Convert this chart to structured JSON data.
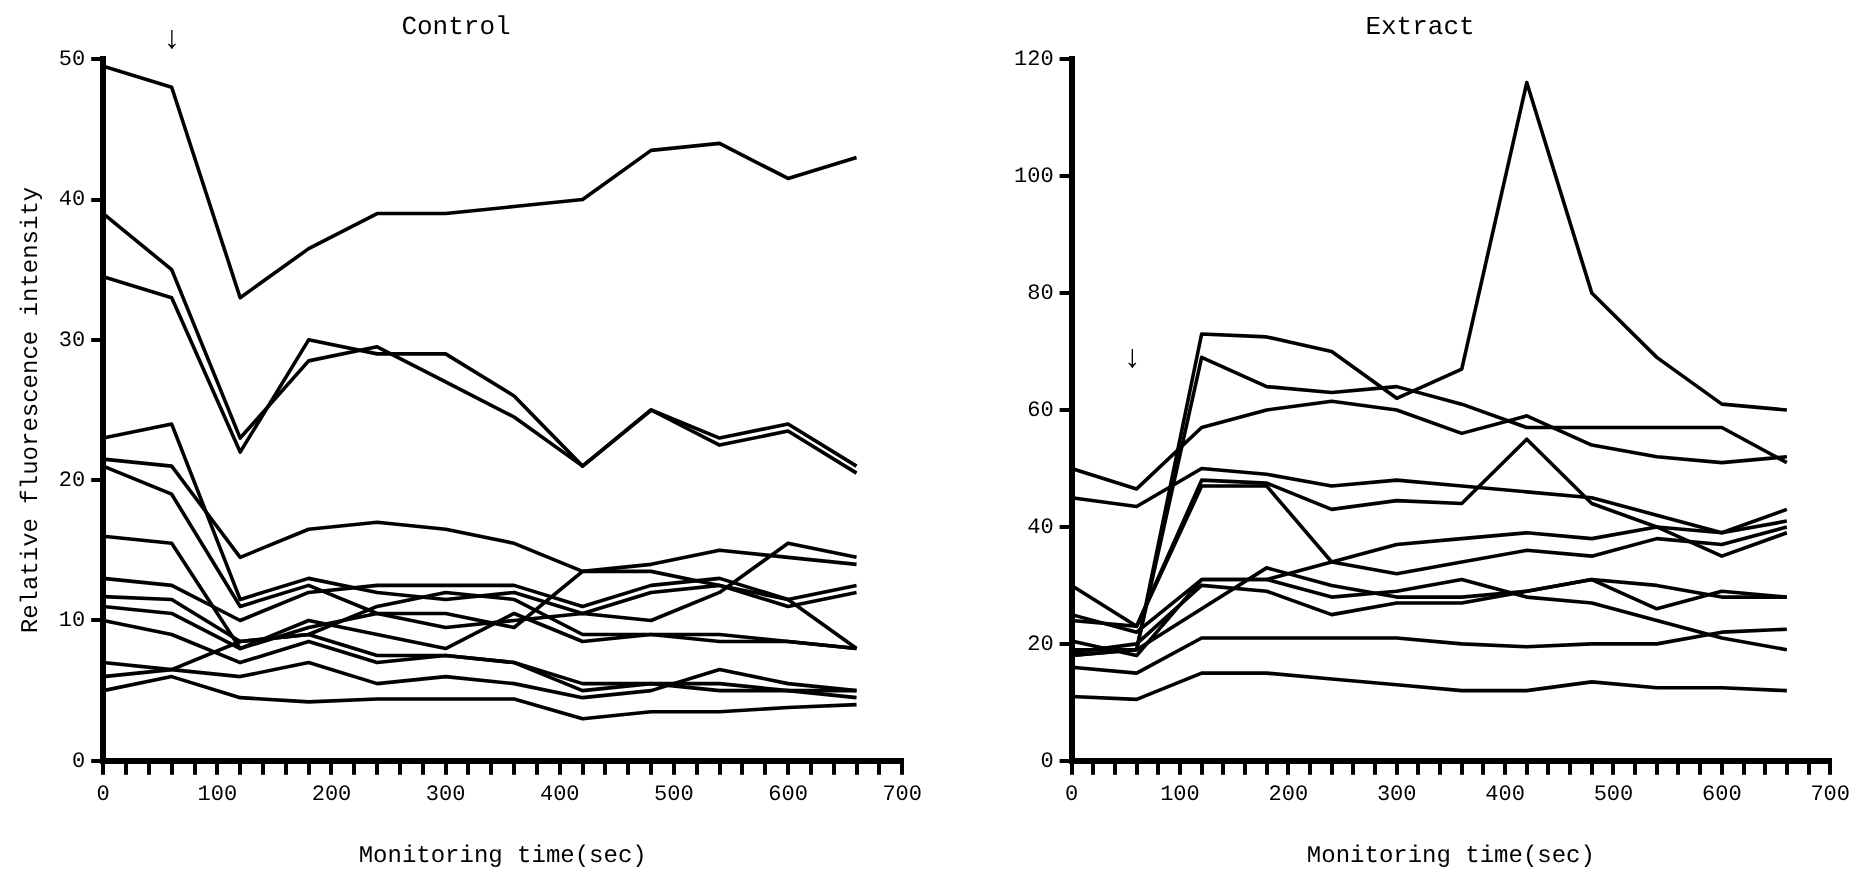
{
  "chart_data": [
    {
      "type": "line",
      "title": "Control",
      "xlabel": "Monitoring time(sec)",
      "ylabel": "Relative fluorescence intensity",
      "x": [
        0,
        60,
        120,
        180,
        240,
        300,
        360,
        420,
        480,
        540,
        600,
        660
      ],
      "xlim": [
        0,
        700
      ],
      "ylim": [
        0,
        50
      ],
      "yticks": [
        0,
        10,
        20,
        30,
        40,
        50
      ],
      "xticks": [
        0,
        {
          "value": 20,
          "label": null
        },
        {
          "value": 40,
          "label": null
        },
        {
          "value": 60,
          "label": null
        },
        {
          "value": 80,
          "label": null
        },
        100,
        {
          "value": 120,
          "label": null
        },
        {
          "value": 140,
          "label": null
        },
        {
          "value": 160,
          "label": null
        },
        {
          "value": 180,
          "label": null
        },
        200,
        {
          "value": 220,
          "label": null
        },
        {
          "value": 240,
          "label": null
        },
        {
          "value": 260,
          "label": null
        },
        {
          "value": 280,
          "label": null
        },
        300,
        {
          "value": 320,
          "label": null
        },
        {
          "value": 340,
          "label": null
        },
        {
          "value": 360,
          "label": null
        },
        {
          "value": 380,
          "label": null
        },
        400,
        {
          "value": 420,
          "label": null
        },
        {
          "value": 440,
          "label": null
        },
        {
          "value": 460,
          "label": null
        },
        {
          "value": 480,
          "label": null
        },
        500,
        {
          "value": 520,
          "label": null
        },
        {
          "value": 540,
          "label": null
        },
        {
          "value": 560,
          "label": null
        },
        {
          "value": 580,
          "label": null
        },
        600,
        {
          "value": 620,
          "label": null
        },
        {
          "value": 640,
          "label": null
        },
        {
          "value": 660,
          "label": null
        },
        {
          "value": 680,
          "label": null
        },
        700
      ],
      "grid": false,
      "marker": "none",
      "line_style": "solid",
      "annotations": [
        "↓"
      ],
      "series": [
        {
          "color": "#000000",
          "values": [
            49.5,
            48,
            33,
            36.5,
            39,
            39,
            39.5,
            40,
            43.5,
            44,
            41.5,
            43
          ]
        },
        {
          "color": "#000000",
          "values": [
            39,
            35,
            23,
            28.5,
            29.5,
            27,
            24.5,
            21,
            25,
            23,
            24,
            21
          ]
        },
        {
          "color": "#000000",
          "values": [
            34.5,
            33,
            22,
            30,
            29,
            29,
            26,
            21,
            25,
            22.5,
            23.5,
            20.5
          ]
        },
        {
          "color": "#000000",
          "values": [
            23,
            24,
            11.5,
            13,
            12,
            11.5,
            12,
            10.5,
            12,
            12.5,
            11,
            12
          ]
        },
        {
          "color": "#000000",
          "values": [
            21.5,
            21,
            14.5,
            16.5,
            17,
            16.5,
            15.5,
            13.5,
            14,
            15,
            14.5,
            14
          ]
        },
        {
          "color": "#000000",
          "values": [
            21,
            19,
            11,
            12.5,
            10.5,
            9.5,
            10,
            10.5,
            10,
            12,
            15.5,
            14.5
          ]
        },
        {
          "color": "#000000",
          "values": [
            16,
            15.5,
            8,
            9.5,
            10.5,
            10.5,
            9.5,
            13.5,
            13.5,
            12.5,
            11.5,
            12.5
          ]
        },
        {
          "color": "#000000",
          "values": [
            13,
            12.5,
            10,
            12,
            12.5,
            12.5,
            12.5,
            11,
            12.5,
            13,
            11.5,
            8
          ]
        },
        {
          "color": "#000000",
          "values": [
            11.7,
            11.5,
            8.5,
            9,
            11,
            12,
            11.5,
            9,
            9,
            8.5,
            8.5,
            8
          ]
        },
        {
          "color": "#000000",
          "values": [
            11,
            10.5,
            8,
            10,
            9,
            8,
            10.5,
            8.5,
            9,
            9,
            8.5,
            8
          ]
        },
        {
          "color": "#000000",
          "values": [
            10,
            9,
            7,
            8.5,
            7,
            7.5,
            7,
            5.5,
            5.5,
            5.5,
            5,
            5
          ]
        },
        {
          "color": "#000000",
          "values": [
            7,
            6.5,
            6,
            7,
            5.5,
            6,
            5.5,
            4.5,
            5,
            6.5,
            5.5,
            5
          ]
        },
        {
          "color": "#000000",
          "values": [
            6,
            6.5,
            8.5,
            9,
            7.5,
            7.5,
            7,
            5,
            5.5,
            5,
            5,
            4.5
          ]
        },
        {
          "color": "#000000",
          "values": [
            5,
            6,
            4.5,
            4.2,
            4.4,
            4.4,
            4.4,
            3,
            3.5,
            3.5,
            3.8,
            4
          ]
        }
      ]
    },
    {
      "type": "line",
      "title": "Extract",
      "xlabel": "Monitoring time(sec)",
      "x": [
        0,
        60,
        120,
        180,
        240,
        300,
        360,
        420,
        480,
        540,
        600,
        660
      ],
      "xlim": [
        0,
        700
      ],
      "ylim": [
        0,
        120
      ],
      "yticks": [
        0,
        20,
        40,
        60,
        80,
        100,
        120
      ],
      "xticks": [
        0,
        {
          "value": 20,
          "label": null
        },
        {
          "value": 40,
          "label": null
        },
        {
          "value": 60,
          "label": null
        },
        {
          "value": 80,
          "label": null
        },
        100,
        {
          "value": 120,
          "label": null
        },
        {
          "value": 140,
          "label": null
        },
        {
          "value": 160,
          "label": null
        },
        {
          "value": 180,
          "label": null
        },
        200,
        {
          "value": 220,
          "label": null
        },
        {
          "value": 240,
          "label": null
        },
        {
          "value": 260,
          "label": null
        },
        {
          "value": 280,
          "label": null
        },
        300,
        {
          "value": 320,
          "label": null
        },
        {
          "value": 340,
          "label": null
        },
        {
          "value": 360,
          "label": null
        },
        {
          "value": 380,
          "label": null
        },
        400,
        {
          "value": 420,
          "label": null
        },
        {
          "value": 440,
          "label": null
        },
        {
          "value": 460,
          "label": null
        },
        {
          "value": 480,
          "label": null
        },
        500,
        {
          "value": 520,
          "label": null
        },
        {
          "value": 540,
          "label": null
        },
        {
          "value": 560,
          "label": null
        },
        {
          "value": 580,
          "label": null
        },
        600,
        {
          "value": 620,
          "label": null
        },
        {
          "value": 640,
          "label": null
        },
        {
          "value": 660,
          "label": null
        },
        {
          "value": 680,
          "label": null
        },
        700
      ],
      "grid": false,
      "marker": "none",
      "line_style": "solid",
      "annotations": [
        "↓"
      ],
      "series": [
        {
          "color": "#000000",
          "values": [
            18,
            19,
            73,
            72.5,
            70,
            62,
            67,
            116,
            80,
            69,
            61,
            60
          ]
        },
        {
          "color": "#000000",
          "values": [
            19,
            19,
            69,
            64,
            63,
            64,
            61,
            57,
            57,
            57,
            57,
            51
          ]
        },
        {
          "color": "#000000",
          "values": [
            50,
            46.5,
            57,
            60,
            61.5,
            60,
            56,
            59,
            54,
            52,
            51,
            52
          ]
        },
        {
          "color": "#000000",
          "values": [
            45,
            43.5,
            50,
            49,
            47,
            48,
            47,
            46,
            45,
            42,
            39,
            43
          ]
        },
        {
          "color": "#000000",
          "values": [
            30,
            23,
            48,
            47.5,
            43,
            44.5,
            44,
            55,
            44,
            40,
            35,
            39
          ]
        },
        {
          "color": "#000000",
          "values": [
            24,
            23,
            47,
            47,
            34,
            32,
            34,
            36,
            35,
            38,
            37,
            40
          ]
        },
        {
          "color": "#000000",
          "values": [
            25,
            22,
            31,
            31,
            34,
            37,
            38,
            39,
            38,
            40,
            39,
            41
          ]
        },
        {
          "color": "#000000",
          "values": [
            20.5,
            18,
            31,
            31,
            28,
            29,
            31,
            28,
            27,
            24,
            21,
            19
          ]
        },
        {
          "color": "#000000",
          "values": [
            18,
            19,
            26,
            33,
            30,
            28,
            28,
            29,
            31,
            26,
            29,
            28
          ]
        },
        {
          "color": "#000000",
          "values": [
            18.5,
            20,
            30,
            29,
            25,
            27,
            27,
            29,
            31,
            30,
            28,
            28
          ]
        },
        {
          "color": "#000000",
          "values": [
            16,
            15,
            21,
            21,
            21,
            21,
            20,
            19.5,
            20,
            20,
            22,
            22.5
          ]
        },
        {
          "color": "#000000",
          "values": [
            11,
            10.5,
            15,
            15,
            14,
            13,
            12,
            12,
            13.5,
            12.5,
            12.5,
            12
          ]
        }
      ]
    }
  ]
}
